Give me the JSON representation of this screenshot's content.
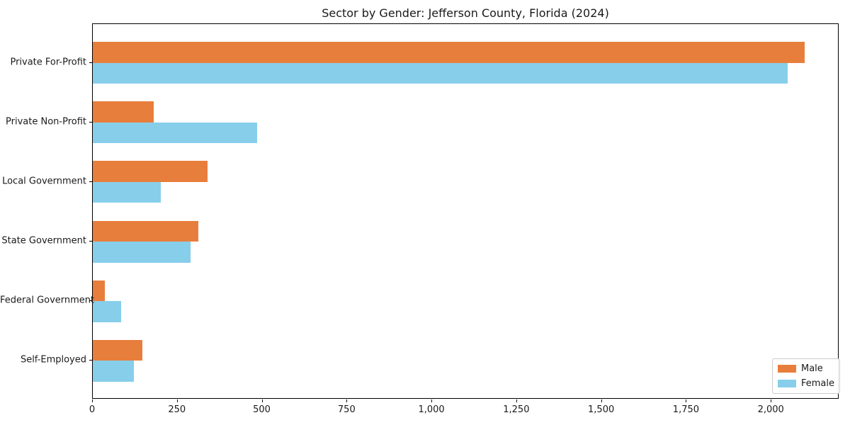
{
  "chart_data": {
    "type": "bar",
    "orientation": "horizontal",
    "title": "Sector by Gender: Jefferson County, Florida (2024)",
    "categories": [
      "Private For-Profit",
      "Private Non-Profit",
      "Local Government",
      "State Government",
      "Federal Government",
      "Self-Employed"
    ],
    "series": [
      {
        "name": "Male",
        "color": "#E87E3C",
        "values": [
          2097,
          180,
          338,
          310,
          35,
          146
        ]
      },
      {
        "name": "Female",
        "color": "#87CEEB",
        "values": [
          2048,
          485,
          200,
          288,
          84,
          121
        ]
      }
    ],
    "xlabel": "",
    "ylabel": "",
    "xlim": [
      0,
      2200
    ],
    "x_ticks": [
      {
        "value": 0,
        "label": "0"
      },
      {
        "value": 250,
        "label": "250"
      },
      {
        "value": 500,
        "label": "500"
      },
      {
        "value": 750,
        "label": "750"
      },
      {
        "value": 1000,
        "label": "1,000"
      },
      {
        "value": 1250,
        "label": "1,250"
      },
      {
        "value": 1500,
        "label": "1,500"
      },
      {
        "value": 1750,
        "label": "1,750"
      },
      {
        "value": 2000,
        "label": "2,000"
      }
    ],
    "grid": false,
    "legend_position": "lower right",
    "axis_color": "#000000",
    "background_color": "#ffffff"
  }
}
